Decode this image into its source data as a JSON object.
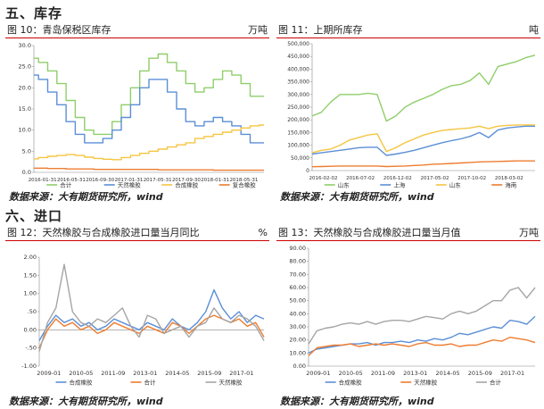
{
  "sections": {
    "inventory": "五、库存",
    "imports": "六、进口"
  },
  "source_label": "数据来源：大有期货研究所，wind",
  "chart_data": [
    {
      "id": "c10",
      "type": "line",
      "title": "图 10：青岛保税区库存",
      "unit": "万吨",
      "ylim": [
        0,
        30
      ],
      "yticks": [
        "0.0",
        "5.0",
        "10.0",
        "15.0",
        "20.0",
        "25.0",
        "30.0"
      ],
      "ytick_values": [
        0,
        5,
        10,
        15,
        20,
        25,
        30
      ],
      "xticks": [
        "2016-01-31",
        "2016-05-31",
        "2016-09-30",
        "2017-01-31",
        "2017-05-31",
        "2017-09-30",
        "2018-01-31",
        "2018-05-31"
      ],
      "legend": [
        "合计",
        "天然橡胶",
        "合成橡胶",
        "复合橡胶"
      ],
      "colors": [
        "#8fce6a",
        "#5b8fd6",
        "#f5c542",
        "#ed7d31"
      ],
      "series": [
        {
          "name": "合计",
          "values": [
            27,
            26,
            24,
            21,
            17,
            13,
            10,
            9,
            9,
            12,
            16,
            20,
            24,
            27,
            28,
            26,
            24,
            21,
            19,
            20,
            22,
            24,
            23,
            21,
            18,
            18
          ]
        },
        {
          "name": "天然橡胶",
          "values": [
            23,
            22,
            19,
            16,
            12,
            9,
            7,
            7,
            8,
            10,
            13,
            16,
            20,
            22,
            22,
            19,
            15,
            12,
            11,
            12,
            13,
            12,
            11,
            9,
            7,
            7
          ]
        },
        {
          "name": "合成橡胶",
          "values": [
            3.2,
            3.5,
            3.8,
            4.0,
            4.2,
            4.0,
            3.6,
            3.3,
            3.1,
            3.0,
            3.5,
            4.0,
            4.5,
            5.0,
            5.5,
            6.0,
            6.5,
            7.0,
            8.0,
            8.5,
            9.0,
            9.5,
            10.0,
            10.5,
            11.0,
            11.2
          ]
        },
        {
          "name": "复合橡胶",
          "values": [
            1.0,
            1.0,
            0.9,
            0.9,
            0.8,
            0.8,
            0.8,
            0.7,
            0.7,
            0.7,
            0.7,
            0.7,
            0.7,
            0.7,
            0.6,
            0.6,
            0.6,
            0.6,
            0.6,
            0.6,
            0.5,
            0.5,
            0.5,
            0.5,
            0.5,
            0.5
          ]
        }
      ]
    },
    {
      "id": "c11",
      "type": "line",
      "title": "图 11：上期所库存",
      "unit": "吨",
      "ylim": [
        0,
        500000
      ],
      "yticks": [
        "0",
        "50,000",
        "100,000",
        "150,000",
        "200,000",
        "250,000",
        "300,000",
        "350,000",
        "400,000",
        "450,000",
        "500,000"
      ],
      "ytick_values": [
        0,
        50000,
        100000,
        150000,
        200000,
        250000,
        300000,
        350000,
        400000,
        450000,
        500000
      ],
      "xticks": [
        "2016-02-02",
        "2016-07-02",
        "2016-12-02",
        "2017-05-02",
        "2017-10-02",
        "2018-03-02"
      ],
      "legend": [
        "山东",
        "上海",
        "山东",
        "海南"
      ],
      "colors": [
        "#8fce6a",
        "#5b8fd6",
        "#f5c542",
        "#ed7d31"
      ],
      "series": [
        {
          "name": "山东",
          "values": [
            215000,
            230000,
            270000,
            300000,
            300000,
            300000,
            305000,
            300000,
            195000,
            215000,
            250000,
            270000,
            285000,
            300000,
            320000,
            335000,
            340000,
            355000,
            385000,
            340000,
            410000,
            420000,
            430000,
            445000,
            455000
          ]
        },
        {
          "name": "上海",
          "values": [
            65000,
            70000,
            75000,
            80000,
            85000,
            90000,
            92000,
            92000,
            60000,
            65000,
            72000,
            80000,
            90000,
            100000,
            110000,
            118000,
            125000,
            135000,
            150000,
            130000,
            160000,
            168000,
            172000,
            175000,
            175000
          ]
        },
        {
          "name": "山东",
          "values": [
            70000,
            80000,
            85000,
            100000,
            120000,
            130000,
            140000,
            145000,
            75000,
            90000,
            110000,
            125000,
            140000,
            150000,
            158000,
            162000,
            165000,
            168000,
            175000,
            165000,
            175000,
            178000,
            180000,
            180000,
            180000
          ]
        },
        {
          "name": "海南",
          "values": [
            15000,
            16000,
            17000,
            18000,
            18000,
            18000,
            18000,
            18000,
            16000,
            17000,
            18000,
            20000,
            22000,
            25000,
            26000,
            28000,
            30000,
            32000,
            34000,
            35000,
            36000,
            37000,
            38000,
            38000,
            38000
          ]
        }
      ]
    },
    {
      "id": "c12",
      "type": "line",
      "title": "图 12：天然橡胶与合成橡胶进口量当月同比",
      "unit": "%",
      "ylim": [
        -1.0,
        2.0
      ],
      "yticks": [
        "-1.00",
        "-.50",
        "0.00",
        ".50",
        "1.00",
        "1.50",
        "2.00"
      ],
      "ytick_values": [
        -1.0,
        -0.5,
        0,
        0.5,
        1.0,
        1.5,
        2.0
      ],
      "xticks": [
        "2009-01",
        "2010-05",
        "2011-09",
        "2013-01",
        "2014-05",
        "2015-09",
        "2017-01"
      ],
      "legend": [
        "合成橡胶",
        "合计",
        "天然橡胶"
      ],
      "colors": [
        "#5b8fd6",
        "#ed7d31",
        "#a5a5a5"
      ],
      "series": [
        {
          "name": "合成橡胶",
          "values": [
            -0.3,
            0.1,
            0.4,
            0.2,
            0.3,
            0.1,
            0.2,
            0.0,
            0.1,
            0.3,
            0.2,
            0.1,
            0.0,
            0.2,
            0.1,
            0.0,
            0.3,
            0.1,
            0.0,
            0.2,
            0.5,
            1.1,
            0.6,
            0.3,
            0.5,
            0.2,
            0.4,
            0.3
          ]
        },
        {
          "name": "合计",
          "values": [
            -0.5,
            0.0,
            0.3,
            0.1,
            0.2,
            0.0,
            0.1,
            -0.1,
            0.0,
            0.2,
            0.1,
            0.0,
            -0.1,
            0.1,
            0.0,
            -0.1,
            0.2,
            0.1,
            -0.1,
            0.1,
            0.3,
            0.4,
            0.3,
            0.2,
            0.3,
            0.1,
            0.2,
            -0.2
          ]
        },
        {
          "name": "天然橡胶",
          "values": [
            -0.6,
            0.2,
            0.6,
            1.8,
            0.5,
            0.2,
            0.1,
            0.3,
            0.2,
            0.4,
            0.6,
            0.1,
            -0.2,
            0.4,
            0.3,
            -0.1,
            0.0,
            0.1,
            -0.2,
            0.1,
            0.2,
            0.6,
            0.3,
            0.2,
            0.4,
            0.3,
            0.1,
            -0.3
          ]
        }
      ]
    },
    {
      "id": "c13",
      "type": "line",
      "title": "图 13：天然橡胶与合成橡胶进口量当月值",
      "unit": "万吨",
      "ylim": [
        0,
        90
      ],
      "yticks": [
        "0.00",
        "10.00",
        "20.00",
        "30.00",
        "40.00",
        "50.00",
        "60.00",
        "70.00",
        "80.00",
        "90.00"
      ],
      "ytick_values": [
        0,
        10,
        20,
        30,
        40,
        50,
        60,
        70,
        80,
        90
      ],
      "xticks": [
        "2009-01",
        "2010-05",
        "2011-09",
        "2013-01",
        "2014-05",
        "2015-09",
        "2017-01"
      ],
      "legend": [
        "合成橡胶",
        "天然橡胶",
        "合计"
      ],
      "colors": [
        "#5b8fd6",
        "#ed7d31",
        "#a5a5a5"
      ],
      "series": [
        {
          "name": "合成橡胶",
          "values": [
            10,
            13,
            14,
            15,
            16,
            17,
            17,
            18,
            16,
            18,
            18,
            19,
            18,
            20,
            19,
            21,
            20,
            22,
            25,
            24,
            26,
            28,
            30,
            29,
            35,
            34,
            32,
            38
          ]
        },
        {
          "name": "天然橡胶",
          "values": [
            8,
            14,
            15,
            16,
            16,
            17,
            15,
            16,
            17,
            16,
            17,
            16,
            15,
            17,
            18,
            16,
            16,
            17,
            15,
            16,
            16,
            18,
            20,
            19,
            22,
            21,
            20,
            18
          ]
        },
        {
          "name": "合计",
          "values": [
            17,
            27,
            29,
            30,
            32,
            33,
            32,
            34,
            32,
            34,
            35,
            35,
            34,
            36,
            38,
            37,
            36,
            40,
            42,
            40,
            42,
            46,
            50,
            50,
            58,
            60,
            52,
            60
          ]
        }
      ]
    }
  ]
}
